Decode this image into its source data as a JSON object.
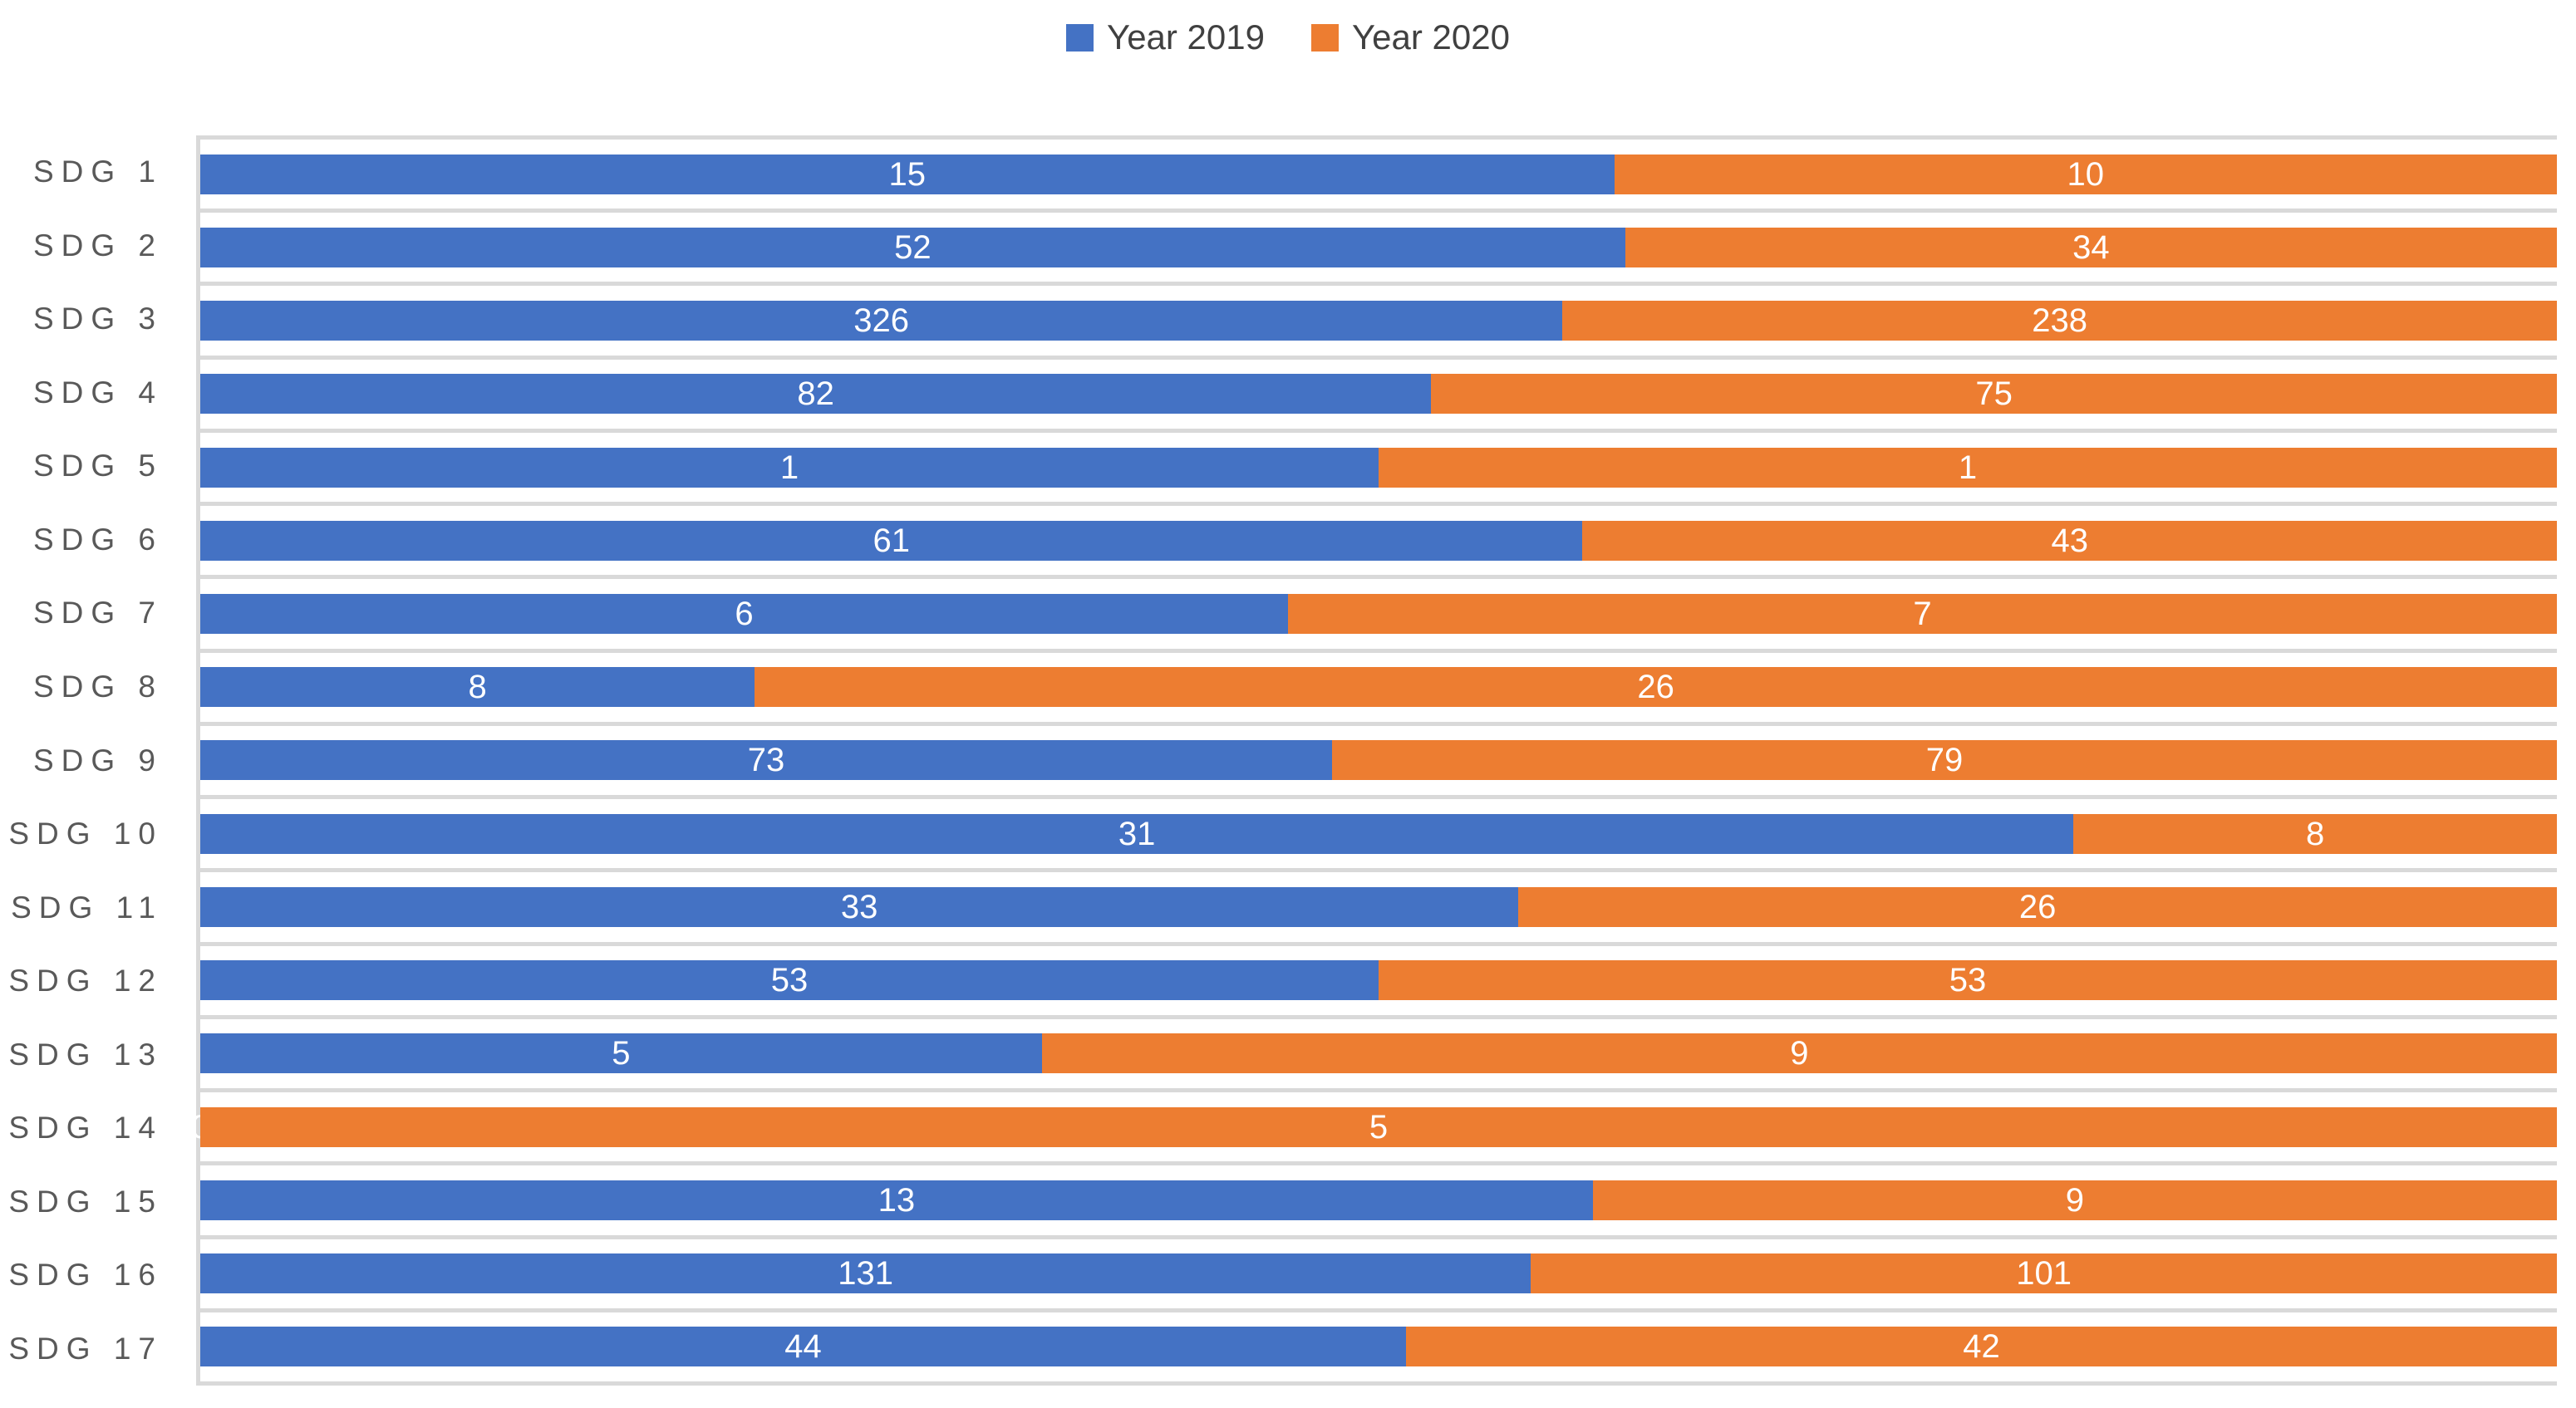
{
  "legend": {
    "items": [
      {
        "label": "Year 2019",
        "color": "#4472C4"
      },
      {
        "label": "Year 2020",
        "color": "#ED7D31"
      }
    ]
  },
  "chart_data": {
    "type": "bar",
    "subtype": "stacked-100-percent-horizontal",
    "title": "",
    "xlabel": "",
    "ylabel": "",
    "categories": [
      "SDG 1",
      "SDG 2",
      "SDG 3",
      "SDG 4",
      "SDG 5",
      "SDG 6",
      "SDG 7",
      "SDG 8",
      "SDG 9",
      "SDG 10",
      "SDG 11",
      "SDG 12",
      "SDG 13",
      "SDG 14",
      "SDG 15",
      "SDG 16",
      "SDG 17"
    ],
    "series": [
      {
        "name": "Year 2019",
        "color": "#4472C4",
        "values": [
          15,
          52,
          326,
          82,
          1,
          61,
          6,
          8,
          73,
          31,
          33,
          53,
          5,
          0,
          13,
          131,
          44
        ]
      },
      {
        "name": "Year 2020",
        "color": "#ED7D31",
        "values": [
          10,
          34,
          238,
          75,
          1,
          43,
          7,
          26,
          79,
          8,
          26,
          53,
          9,
          5,
          9,
          101,
          42
        ]
      }
    ],
    "data_labels": "centered-white-on-segment",
    "data_label_color": "#FFFFFF",
    "legend_position": "top-center",
    "grid": "category-boundary-lines",
    "gridline_color": "#D9D9D9",
    "axis_line_color": "#D9D9D9",
    "axis_label_color": "#595959",
    "value_axis_tick_labels_visible": false
  }
}
